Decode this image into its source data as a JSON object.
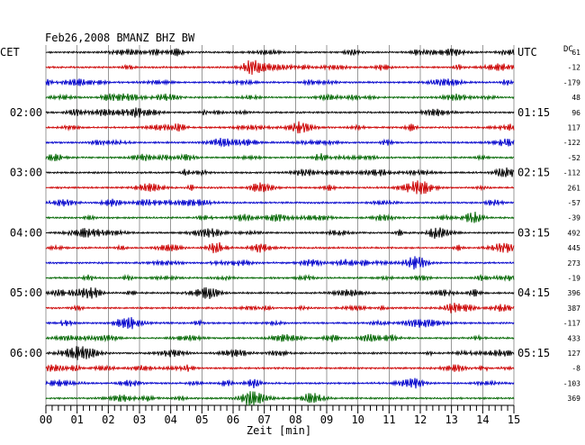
{
  "title": "Feb26,2008   BMANZ BHZ BW",
  "left_timezone": "CET",
  "right_timezone": "UTC",
  "dc_header": "DC",
  "chart_data": {
    "type": "line",
    "title": "Feb26,2008   BMANZ BHZ BW",
    "xlabel": "Zeit [min]",
    "x_ticks": [
      "00",
      "01",
      "02",
      "03",
      "04",
      "05",
      "06",
      "07",
      "08",
      "09",
      "10",
      "11",
      "12",
      "13",
      "14",
      "15"
    ],
    "xlim": [
      0,
      15
    ],
    "grid": true,
    "trace_colors": [
      "#000000",
      "#cc0000",
      "#0000cc",
      "#006600"
    ],
    "left_hour_labels": [
      {
        "trace": 4,
        "label": "02:00"
      },
      {
        "trace": 8,
        "label": "03:00"
      },
      {
        "trace": 12,
        "label": "04:00"
      },
      {
        "trace": 16,
        "label": "05:00"
      },
      {
        "trace": 20,
        "label": "06:00"
      }
    ],
    "right_hour_labels": [
      {
        "trace": 0,
        "label": "UTC"
      },
      {
        "trace": 4,
        "label": "01:15"
      },
      {
        "trace": 8,
        "label": "02:15"
      },
      {
        "trace": 12,
        "label": "03:15"
      },
      {
        "trace": 16,
        "label": "04:15"
      },
      {
        "trace": 20,
        "label": "05:15"
      }
    ],
    "dc_offsets": [
      "61",
      "-12",
      "-179",
      "48",
      "96",
      "117",
      "-122",
      "-52",
      "-112",
      "261",
      "-57",
      "-39",
      "492",
      "445",
      "273",
      "-19",
      "396",
      "387",
      "-117",
      "433",
      "127",
      "-8",
      "-103",
      "369"
    ]
  }
}
